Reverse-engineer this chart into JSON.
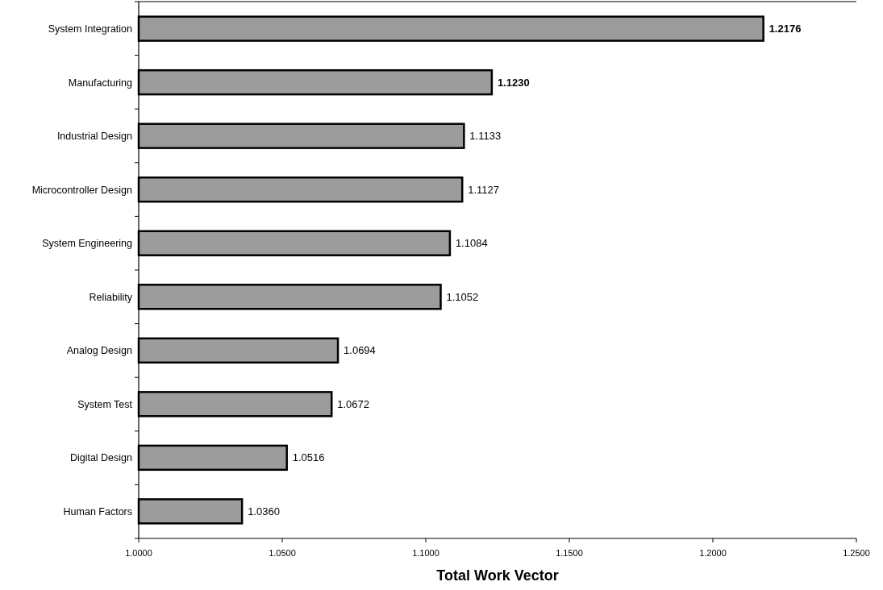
{
  "chart_data": {
    "type": "bar",
    "orientation": "horizontal",
    "xlabel": "Total Work Vector",
    "categories": [
      "System Integration",
      "Manufacturing",
      "Industrial Design",
      "Microcontroller Design",
      "System Engineering",
      "Reliability",
      "Analog Design",
      "System Test",
      "Digital Design",
      "Human Factors"
    ],
    "values": [
      1.2176,
      1.123,
      1.1133,
      1.1127,
      1.1084,
      1.1052,
      1.0694,
      1.0672,
      1.0516,
      1.036
    ],
    "value_labels": [
      "1.2176",
      "1.1230",
      "1.1133",
      "1.1127",
      "1.1084",
      "1.1052",
      "1.0694",
      "1.0672",
      "1.0516",
      "1.0360"
    ],
    "color": "#9c9c9c",
    "xlim": [
      1.0,
      1.25
    ],
    "xticks": [
      {
        "value": 1.0,
        "label": "1.0000"
      },
      {
        "value": 1.05,
        "label": "1.0500"
      },
      {
        "value": 1.1,
        "label": "1.1000"
      },
      {
        "value": 1.15,
        "label": "1.1500"
      },
      {
        "value": 1.2,
        "label": "1.2000"
      },
      {
        "value": 1.25,
        "label": "1.2500"
      }
    ],
    "grid": false
  }
}
